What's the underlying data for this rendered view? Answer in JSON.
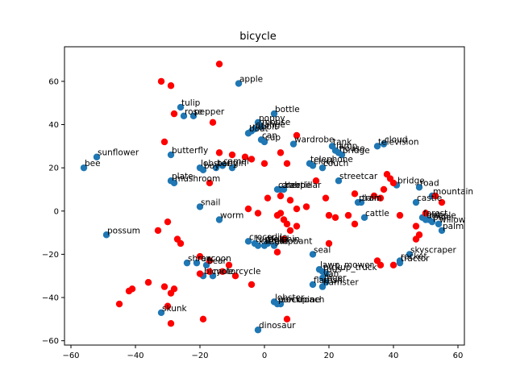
{
  "chart_data": {
    "type": "scatter",
    "title": "bicycle",
    "xlabel": "",
    "ylabel": "",
    "xlim": [
      -62,
      62
    ],
    "ylim": [
      -62,
      76
    ],
    "xticks": [
      -60,
      -40,
      -20,
      0,
      20,
      40,
      60
    ],
    "yticks": [
      -60,
      -40,
      -20,
      0,
      20,
      40,
      60
    ],
    "grid": false,
    "series": [
      {
        "color": "#1f77b4",
        "points": [
          {
            "x": -8,
            "y": 59,
            "label": "apple"
          },
          {
            "x": -26,
            "y": 48,
            "label": "tulip"
          },
          {
            "x": -25,
            "y": 44,
            "label": "rose"
          },
          {
            "x": -22,
            "y": 44,
            "label": "pepper"
          },
          {
            "x": 3,
            "y": 45,
            "label": "bottle"
          },
          {
            "x": -2,
            "y": 41,
            "label": "poppy"
          },
          {
            "x": -1,
            "y": 39,
            "label": "mouse"
          },
          {
            "x": -3,
            "y": 38,
            "label": "orange"
          },
          {
            "x": -4,
            "y": 37,
            "label": "rabbit"
          },
          {
            "x": -5,
            "y": 36,
            "label": "boat"
          },
          {
            "x": -1,
            "y": 33,
            "label": "can"
          },
          {
            "x": 0,
            "y": 32,
            "label": "cup"
          },
          {
            "x": 9,
            "y": 31,
            "label": "wardrobe"
          },
          {
            "x": 21,
            "y": 30,
            "label": "tank"
          },
          {
            "x": 22,
            "y": 28,
            "label": "lamp"
          },
          {
            "x": 23,
            "y": 27,
            "label": "house"
          },
          {
            "x": 24,
            "y": 26,
            "label": "bridge"
          },
          {
            "x": 37,
            "y": 31,
            "label": "cloud"
          },
          {
            "x": 35,
            "y": 30,
            "label": "television"
          },
          {
            "x": -56,
            "y": 20,
            "label": "bee"
          },
          {
            "x": -52,
            "y": 25,
            "label": "sunflower"
          },
          {
            "x": -29,
            "y": 26,
            "label": "butterfly"
          },
          {
            "x": -20,
            "y": 20,
            "label": "lobster"
          },
          {
            "x": -19,
            "y": 19,
            "label": "boy"
          },
          {
            "x": -15,
            "y": 20,
            "label": "baby"
          },
          {
            "x": -13,
            "y": 21,
            "label": "camel"
          },
          {
            "x": -10,
            "y": 20,
            "label": "girl"
          },
          {
            "x": 14,
            "y": 22,
            "label": "telephone"
          },
          {
            "x": 15,
            "y": 21,
            "label": "clock"
          },
          {
            "x": 18,
            "y": 20,
            "label": "couch"
          },
          {
            "x": -29,
            "y": 14,
            "label": "plate"
          },
          {
            "x": -28,
            "y": 13,
            "label": "mushroom"
          },
          {
            "x": 4,
            "y": 10,
            "label": "caterpillar"
          },
          {
            "x": 5,
            "y": 10,
            "label": "crab"
          },
          {
            "x": 6,
            "y": 10,
            "label": "beetle"
          },
          {
            "x": 23,
            "y": 14,
            "label": "streetcar"
          },
          {
            "x": 41,
            "y": 12,
            "label": "bridge"
          },
          {
            "x": 48,
            "y": 11,
            "label": "road"
          },
          {
            "x": 52,
            "y": 7,
            "label": "mountain"
          },
          {
            "x": 47,
            "y": 4,
            "label": "castle"
          },
          {
            "x": 29,
            "y": 4,
            "label": "plain"
          },
          {
            "x": 30,
            "y": 4,
            "label": "train"
          },
          {
            "x": -20,
            "y": 2,
            "label": "snail"
          },
          {
            "x": -14,
            "y": -4,
            "label": "worm"
          },
          {
            "x": 31,
            "y": -3,
            "label": "cattle"
          },
          {
            "x": 49,
            "y": -3,
            "label": "forest"
          },
          {
            "x": 50,
            "y": -4,
            "label": "oak"
          },
          {
            "x": 51,
            "y": -4,
            "label": "maple"
          },
          {
            "x": 52,
            "y": -5,
            "label": "pine"
          },
          {
            "x": 54,
            "y": -6,
            "label": "willow"
          },
          {
            "x": 55,
            "y": -9,
            "label": "palm"
          },
          {
            "x": -49,
            "y": -11,
            "label": "possum"
          },
          {
            "x": -5,
            "y": -14,
            "label": "crocodile"
          },
          {
            "x": -3,
            "y": -15,
            "label": "turtle"
          },
          {
            "x": -2,
            "y": -16,
            "label": "kangaroo"
          },
          {
            "x": 0,
            "y": -16,
            "label": "lizard"
          },
          {
            "x": 1,
            "y": -15,
            "label": "dolphin"
          },
          {
            "x": 3,
            "y": -16,
            "label": "elephant"
          },
          {
            "x": 15,
            "y": -20,
            "label": "seal"
          },
          {
            "x": 45,
            "y": -20,
            "label": "skyscraper"
          },
          {
            "x": 42,
            "y": -23,
            "label": "rocket"
          },
          {
            "x": 42,
            "y": -24,
            "label": "tractor"
          },
          {
            "x": -24,
            "y": -24,
            "label": "shrew"
          },
          {
            "x": -21,
            "y": -24,
            "label": "raccoon"
          },
          {
            "x": -18,
            "y": -25,
            "label": "bear"
          },
          {
            "x": -19,
            "y": -30,
            "label": "bicycle"
          },
          {
            "x": -16,
            "y": -30,
            "label": "motorcycle"
          },
          {
            "x": 17,
            "y": -27,
            "label": "lawn_mower"
          },
          {
            "x": 18,
            "y": -28,
            "label": "pickup_truck"
          },
          {
            "x": 19,
            "y": -29,
            "label": "bus"
          },
          {
            "x": 18,
            "y": -31,
            "label": "van"
          },
          {
            "x": 19,
            "y": -33,
            "label": "tiger"
          },
          {
            "x": 15,
            "y": -34,
            "label": "flatfish"
          },
          {
            "x": 18,
            "y": -35,
            "label": "hamster"
          },
          {
            "x": 3,
            "y": -42,
            "label": "lobster"
          },
          {
            "x": 4,
            "y": -43,
            "label": "porcupine"
          },
          {
            "x": 5,
            "y": -43,
            "label": "cockroach"
          },
          {
            "x": -32,
            "y": -47,
            "label": "skunk"
          },
          {
            "x": -2,
            "y": -55,
            "label": "dinosaur"
          }
        ]
      },
      {
        "color": "#ff0000",
        "points": [
          {
            "x": -14,
            "y": 68
          },
          {
            "x": -32,
            "y": 60
          },
          {
            "x": -29,
            "y": 58
          },
          {
            "x": -28,
            "y": 45
          },
          {
            "x": -16,
            "y": 41
          },
          {
            "x": -31,
            "y": 32
          },
          {
            "x": -14,
            "y": 27
          },
          {
            "x": -10,
            "y": 26
          },
          {
            "x": -6,
            "y": 25
          },
          {
            "x": -4,
            "y": 24
          },
          {
            "x": 0,
            "y": 22
          },
          {
            "x": 5,
            "y": 27
          },
          {
            "x": 10,
            "y": 35
          },
          {
            "x": 7,
            "y": 22
          },
          {
            "x": -17,
            "y": 13
          },
          {
            "x": 1,
            "y": 6
          },
          {
            "x": 5,
            "y": 7
          },
          {
            "x": 8,
            "y": 5
          },
          {
            "x": 10,
            "y": 1
          },
          {
            "x": 13,
            "y": 2
          },
          {
            "x": 16,
            "y": 14
          },
          {
            "x": 19,
            "y": 6
          },
          {
            "x": 20,
            "y": -2
          },
          {
            "x": 22,
            "y": -3
          },
          {
            "x": 26,
            "y": -2
          },
          {
            "x": 28,
            "y": -6
          },
          {
            "x": 28,
            "y": 8
          },
          {
            "x": 34,
            "y": 7
          },
          {
            "x": 36,
            "y": 6
          },
          {
            "x": 38,
            "y": 17
          },
          {
            "x": 39,
            "y": 15
          },
          {
            "x": 40,
            "y": 13
          },
          {
            "x": 37,
            "y": 10
          },
          {
            "x": 42,
            "y": -2
          },
          {
            "x": 47,
            "y": -7
          },
          {
            "x": 48,
            "y": -11
          },
          {
            "x": 47,
            "y": -13
          },
          {
            "x": 50,
            "y": -1
          },
          {
            "x": 53,
            "y": 7
          },
          {
            "x": 55,
            "y": 4
          },
          {
            "x": -5,
            "y": 1
          },
          {
            "x": -2,
            "y": -1
          },
          {
            "x": 4,
            "y": -2
          },
          {
            "x": 5,
            "y": -1
          },
          {
            "x": 6,
            "y": -4
          },
          {
            "x": 7,
            "y": -6
          },
          {
            "x": 8,
            "y": -9
          },
          {
            "x": 10,
            "y": -7
          },
          {
            "x": 6,
            "y": -13
          },
          {
            "x": 4,
            "y": -19
          },
          {
            "x": 20,
            "y": -15
          },
          {
            "x": 35,
            "y": -23
          },
          {
            "x": 36,
            "y": -25
          },
          {
            "x": 40,
            "y": -25
          },
          {
            "x": -30,
            "y": -5
          },
          {
            "x": -33,
            "y": -9
          },
          {
            "x": -27,
            "y": -13
          },
          {
            "x": -26,
            "y": -15
          },
          {
            "x": -20,
            "y": -21
          },
          {
            "x": -17,
            "y": -23
          },
          {
            "x": -11,
            "y": -25
          },
          {
            "x": -13,
            "y": -28
          },
          {
            "x": -17,
            "y": -28
          },
          {
            "x": -20,
            "y": -29
          },
          {
            "x": -9,
            "y": -30
          },
          {
            "x": -4,
            "y": -34
          },
          {
            "x": -36,
            "y": -33
          },
          {
            "x": -31,
            "y": -35
          },
          {
            "x": -28,
            "y": -36
          },
          {
            "x": -29,
            "y": -38
          },
          {
            "x": -41,
            "y": -36
          },
          {
            "x": -42,
            "y": -37
          },
          {
            "x": -45,
            "y": -43
          },
          {
            "x": -30,
            "y": -44
          },
          {
            "x": -29,
            "y": -52
          },
          {
            "x": -19,
            "y": -50
          },
          {
            "x": 7,
            "y": -50
          }
        ]
      }
    ]
  }
}
